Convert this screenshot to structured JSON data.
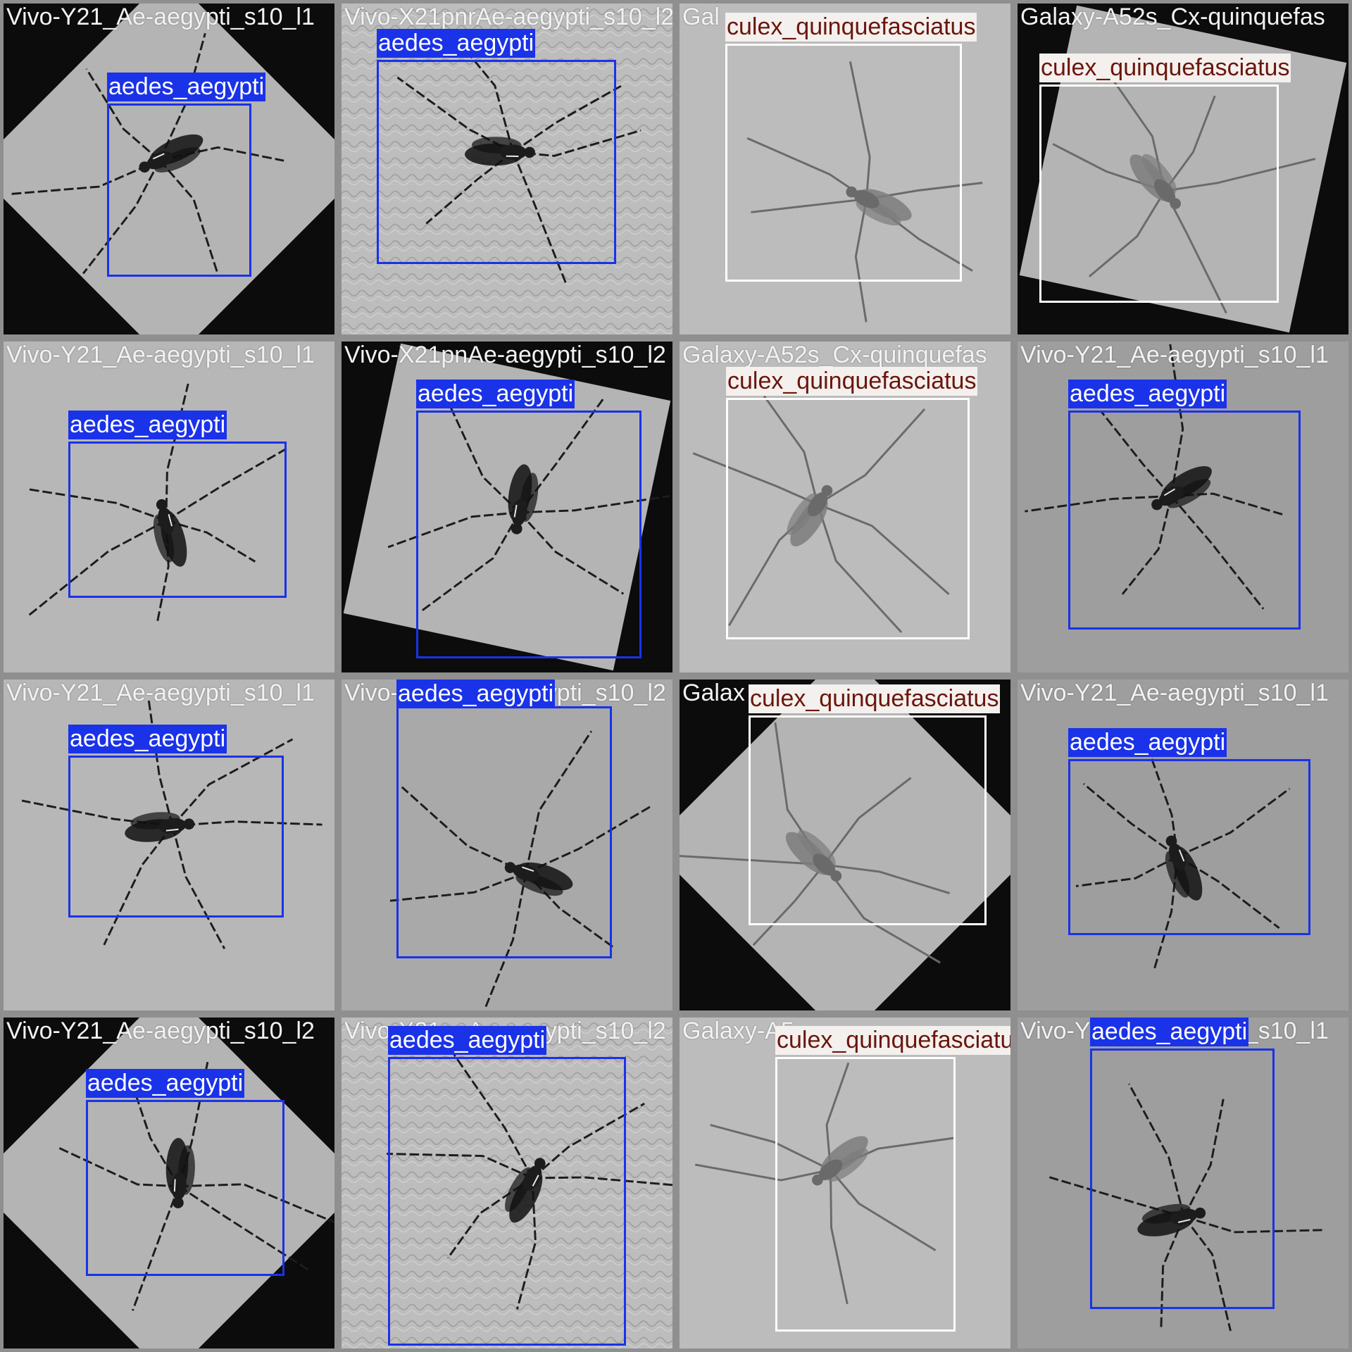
{
  "colors": {
    "aedes_box": "#1a32e8",
    "aedes_label_bg": "#1a32e8",
    "aedes_label_text": "#ffffff",
    "culex_box": "#ffffff",
    "culex_label_bg": "#f4f0ee",
    "culex_label_text": "#6a160c",
    "tile_border": "#8f8f8f",
    "filename_text": "#f2f2f2"
  },
  "tiles": [
    {
      "filename": "Vivo-Y21_Ae-aegypti_s10_l1",
      "label": "aedes_aegypti",
      "background": "rotated-dark"
    },
    {
      "filename": "Vivo-X21pnrAe-aegypti_s10_l2",
      "label": "aedes_aegypti",
      "background": "textured"
    },
    {
      "filename": "Gal",
      "label": "culex_quinquefasciatus",
      "background": "plain"
    },
    {
      "filename": "Galaxy-A52s_Cx-quinquefas",
      "label": "culex_quinquefasciatus",
      "background": "rotated-dark"
    },
    {
      "filename": "Vivo-Y21_Ae-aegypti_s10_l1",
      "label": "aedes_aegypti",
      "background": "plain"
    },
    {
      "filename": "Vivo-X21pnAe-aegypti_s10_l2",
      "label": "aedes_aegypti",
      "background": "rotated-dark"
    },
    {
      "filename": "Galaxy-A52s_Cx-quinquefas",
      "label": "culex_quinquefasciatus",
      "background": "plain"
    },
    {
      "filename": "Vivo-Y21_Ae-aegypti_s10_l1",
      "label": "aedes_aegypti",
      "background": "plain"
    },
    {
      "filename": "Vivo-Y21_Ae-aegypti_s10_l1",
      "label": "aedes_aegypti",
      "background": "plain"
    },
    {
      "filename": "Vivo-X21pnAe-aegypti_s10_l2",
      "label": "aedes_aegypti",
      "background": "plain"
    },
    {
      "filename": "Galax",
      "label": "culex_quinquefasciatus",
      "background": "rotated-dark"
    },
    {
      "filename": "Vivo-Y21_Ae-aegypti_s10_l1",
      "label": "aedes_aegypti",
      "background": "plain"
    },
    {
      "filename": "Vivo-Y21_Ae-aegypti_s10_l2",
      "label": "aedes_aegypti",
      "background": "rotated-dark"
    },
    {
      "filename": "Vivo-X21pnAe-aegypti_s10_l2",
      "label": "aedes_aegypti",
      "background": "textured"
    },
    {
      "filename": "Galaxy-A5",
      "label": "culex_quinquefasciatus",
      "background": "plain"
    },
    {
      "filename": "Vivo-Y21_Ae-aegypti_s10_l1",
      "label": "aedes_aegypti",
      "background": "plain"
    }
  ]
}
